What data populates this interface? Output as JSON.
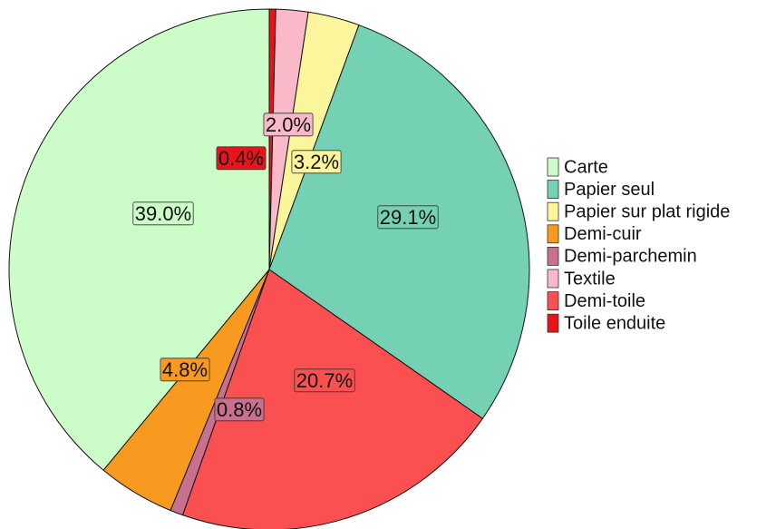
{
  "chart_data": {
    "type": "pie",
    "categories": [
      "Toile enduite",
      "Textile",
      "Papier sur plat rigide",
      "Papier seul",
      "Demi-toile",
      "Demi-parchemin",
      "Demi-cuir",
      "Carte"
    ],
    "values": [
      0.4,
      2.0,
      3.2,
      29.1,
      20.7,
      0.8,
      4.8,
      39.0
    ],
    "value_labels": [
      "0.4%",
      "2.0%",
      "3.2%",
      "29.1%",
      "20.7%",
      "0.8%",
      "4.8%",
      "39.0%"
    ],
    "colors": [
      "#e8141c",
      "#f9b9c9",
      "#fbf59c",
      "#74d1b4",
      "#fb5052",
      "#c9708e",
      "#f89a20",
      "#ccfcc8"
    ],
    "legend": [
      "Carte",
      "Papier seul",
      "Papier sur plat rigide",
      "Demi-cuir",
      "Demi-parchemin",
      "Textile",
      "Demi-toile",
      "Toile enduite"
    ]
  }
}
